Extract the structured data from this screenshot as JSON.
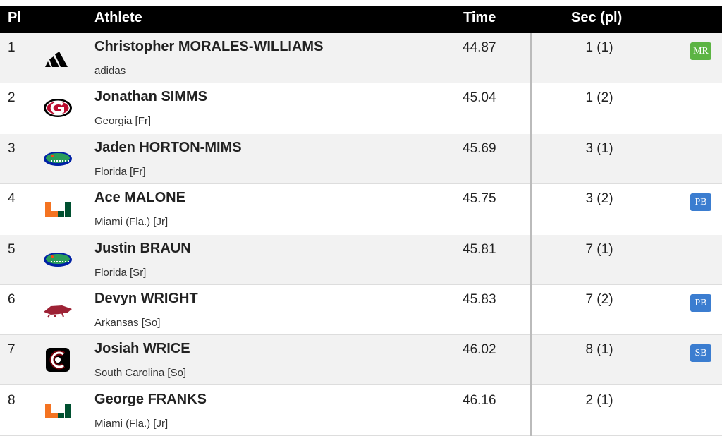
{
  "table": {
    "header": [
      "Pl",
      "Athlete",
      "Time",
      "Sec (pl)"
    ],
    "rows": [
      {
        "place": 1,
        "name": "Christopher MORALES-WILLIAMS",
        "team": "adidas",
        "time": 44.87,
        "sec": "1 (1)",
        "badge": {
          "label": "MR",
          "color": "#5cb443"
        }
      },
      {
        "place": 2,
        "name": "Jonathan SIMMS",
        "team": "Georgia [Fr]",
        "time": 45.04,
        "sec": "1 (2)"
      },
      {
        "place": 3,
        "name": "Jaden HORTON-MIMS",
        "team": "Florida [Fr]",
        "time": 45.69,
        "sec": "3 (1)"
      },
      {
        "place": 4,
        "name": "Ace MALONE",
        "team": "Miami (Fla.) [Jr]",
        "time": 45.75,
        "sec": "3 (2)",
        "badge": {
          "label": "PB",
          "color": "#3b7dd0"
        }
      },
      {
        "place": 5,
        "name": "Justin BRAUN",
        "team": "Florida [Sr]",
        "time": 45.81,
        "sec": "7 (1)"
      },
      {
        "place": 6,
        "name": "Devyn WRIGHT",
        "team": "Arkansas [So]",
        "time": 45.83,
        "sec": "7 (2)",
        "badge": {
          "label": "PB",
          "color": "#3b7dd0"
        }
      },
      {
        "place": 7,
        "name": "Josiah WRICE",
        "team": "South Carolina [So]",
        "time": 46.02,
        "sec": "8 (1)",
        "badge": {
          "label": "SB",
          "color": "#3b7dd0"
        }
      },
      {
        "place": 8,
        "name": "George FRANKS",
        "team": "Miami (Fla.) [Jr]",
        "time": 46.16,
        "sec": "2 (1)"
      }
    ]
  }
}
